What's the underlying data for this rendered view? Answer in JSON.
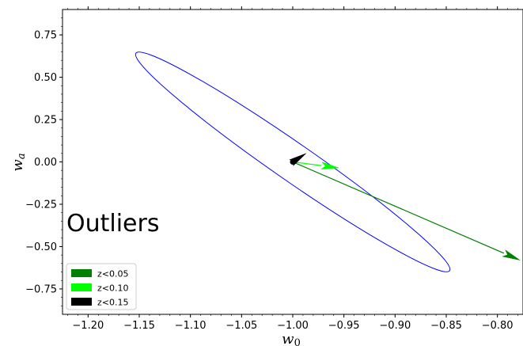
{
  "chart_data": {
    "type": "scatter",
    "title": "",
    "xlabel": "w_0",
    "ylabel": "w_a",
    "xlim": [
      -1.225,
      -0.775
    ],
    "ylim": [
      -0.9,
      0.9
    ],
    "xticks": [
      -1.2,
      -1.15,
      -1.1,
      -1.05,
      -1.0,
      -0.95,
      -0.9,
      -0.85,
      -0.8
    ],
    "xtick_labels": [
      "−1.20",
      "−1.15",
      "−1.10",
      "−1.05",
      "−1.00",
      "−0.95",
      "−0.90",
      "−0.85",
      "−0.80"
    ],
    "yticks": [
      -0.75,
      -0.5,
      -0.25,
      0.0,
      0.25,
      0.5,
      0.75
    ],
    "ytick_labels": [
      "−0.75",
      "−0.50",
      "−0.25",
      "0.00",
      "0.25",
      "0.50",
      "0.75"
    ],
    "grid": false,
    "annotation": "Outliers",
    "ellipse": {
      "color": "#0000ff",
      "points": [
        [
          -1.152,
          0.637
        ],
        [
          -1.148,
          0.635
        ],
        [
          -1.0,
          0.0
        ],
        [
          -0.848,
          -0.637
        ],
        [
          -0.852,
          -0.635
        ],
        [
          -1.0,
          0.0
        ]
      ]
    },
    "arrows": [
      {
        "name": "z<0.05",
        "color": "#008000",
        "from": [
          -1.0,
          0.0
        ],
        "to": [
          -0.778,
          -0.58
        ]
      },
      {
        "name": "z<0.10",
        "color": "#00ff00",
        "from": [
          -1.0,
          0.0
        ],
        "to": [
          -0.955,
          -0.035
        ]
      },
      {
        "name": "z<0.15",
        "color": "#000000",
        "from": [
          -1.0,
          0.0
        ],
        "to": [
          -0.987,
          0.05
        ]
      }
    ],
    "center_point": [
      -1.0,
      0.0
    ],
    "legend": {
      "position": "lower-left",
      "entries": [
        {
          "label": "z<0.05",
          "color": "#008000"
        },
        {
          "label": "z<0.10",
          "color": "#00ff00"
        },
        {
          "label": "z<0.15",
          "color": "#000000"
        }
      ]
    }
  }
}
